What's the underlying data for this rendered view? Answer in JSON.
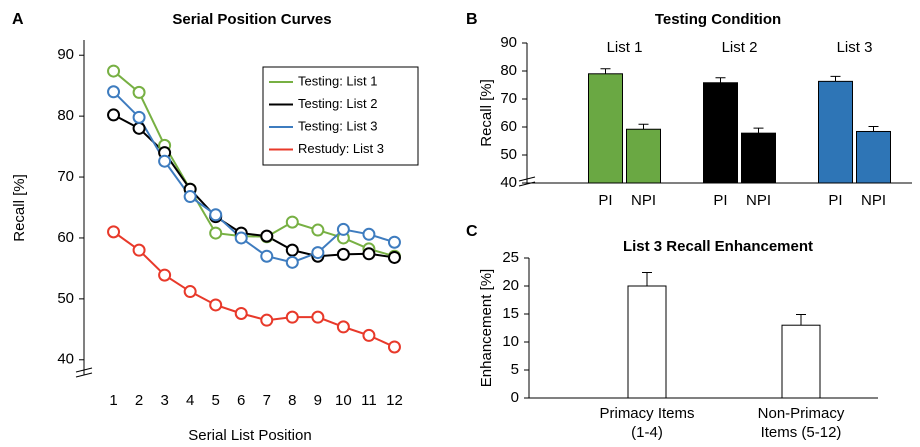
{
  "chart_data": [
    {
      "type": "line",
      "panel_label": "A",
      "title": "Serial Position Curves",
      "xlabel": "Serial List Position",
      "ylabel": "Recall [%]",
      "x": [
        1,
        2,
        3,
        4,
        5,
        6,
        7,
        8,
        9,
        10,
        11,
        12
      ],
      "xlim": [
        0,
        13
      ],
      "xticks": [
        1,
        2,
        3,
        4,
        5,
        6,
        7,
        8,
        9,
        10,
        11,
        12
      ],
      "ylim": [
        37.5,
        92.5
      ],
      "yticks": [
        40,
        50,
        60,
        70,
        80,
        90
      ],
      "legend": "upper right",
      "series": [
        {
          "name": "Testing: List 1",
          "color": "#77b043",
          "values": [
            87.4,
            83.9,
            75.2,
            68,
            60.8,
            60.3,
            60.2,
            62.6,
            61.3,
            60,
            58.2,
            57
          ]
        },
        {
          "name": "Testing: List 2",
          "color": "#000000",
          "values": [
            80.2,
            78,
            74,
            68,
            63.5,
            60.8,
            60.3,
            58,
            57,
            57.3,
            57.4,
            56.8
          ]
        },
        {
          "name": "Testing: List 3",
          "color": "#3e7cbf",
          "values": [
            84,
            79.8,
            72.6,
            66.8,
            63.8,
            60,
            57,
            56,
            57.6,
            61.4,
            60.6,
            59.3
          ]
        },
        {
          "name": "Restudy: List 3",
          "color": "#e8392a",
          "values": [
            61,
            58,
            53.9,
            51.2,
            49,
            47.6,
            46.5,
            47,
            47,
            45.4,
            44,
            42.1
          ]
        }
      ]
    },
    {
      "type": "bar",
      "panel_label": "B",
      "title": "Testing Condition",
      "ylabel": "Recall [%]",
      "groups": [
        "List 1",
        "List 2",
        "List 3"
      ],
      "categories": [
        "PI",
        "NPI",
        "PI",
        "NPI",
        "PI",
        "NPI"
      ],
      "values": [
        79,
        59.2,
        75.8,
        57.8,
        76.3,
        58.4
      ],
      "errors": [
        1.8,
        1.8,
        1.8,
        1.8,
        1.8,
        1.8
      ],
      "colors": [
        "#6aa843",
        "#6aa843",
        "#000000",
        "#000000",
        "#2e75b6",
        "#2e75b6"
      ],
      "ylim": [
        40,
        90
      ],
      "yticks": [
        40,
        50,
        60,
        70,
        80,
        90
      ]
    },
    {
      "type": "bar",
      "panel_label": "C",
      "title": "List 3 Recall Enhancement",
      "ylabel": "Enhancement [%]",
      "categories": [
        "Primacy Items (1-4)",
        "Non-Primacy Items (5-12)"
      ],
      "values": [
        20,
        13
      ],
      "errors": [
        2.4,
        1.9
      ],
      "color": "#ffffff",
      "ylim": [
        0,
        25
      ],
      "yticks": [
        0,
        5,
        10,
        15,
        20,
        25
      ]
    }
  ]
}
